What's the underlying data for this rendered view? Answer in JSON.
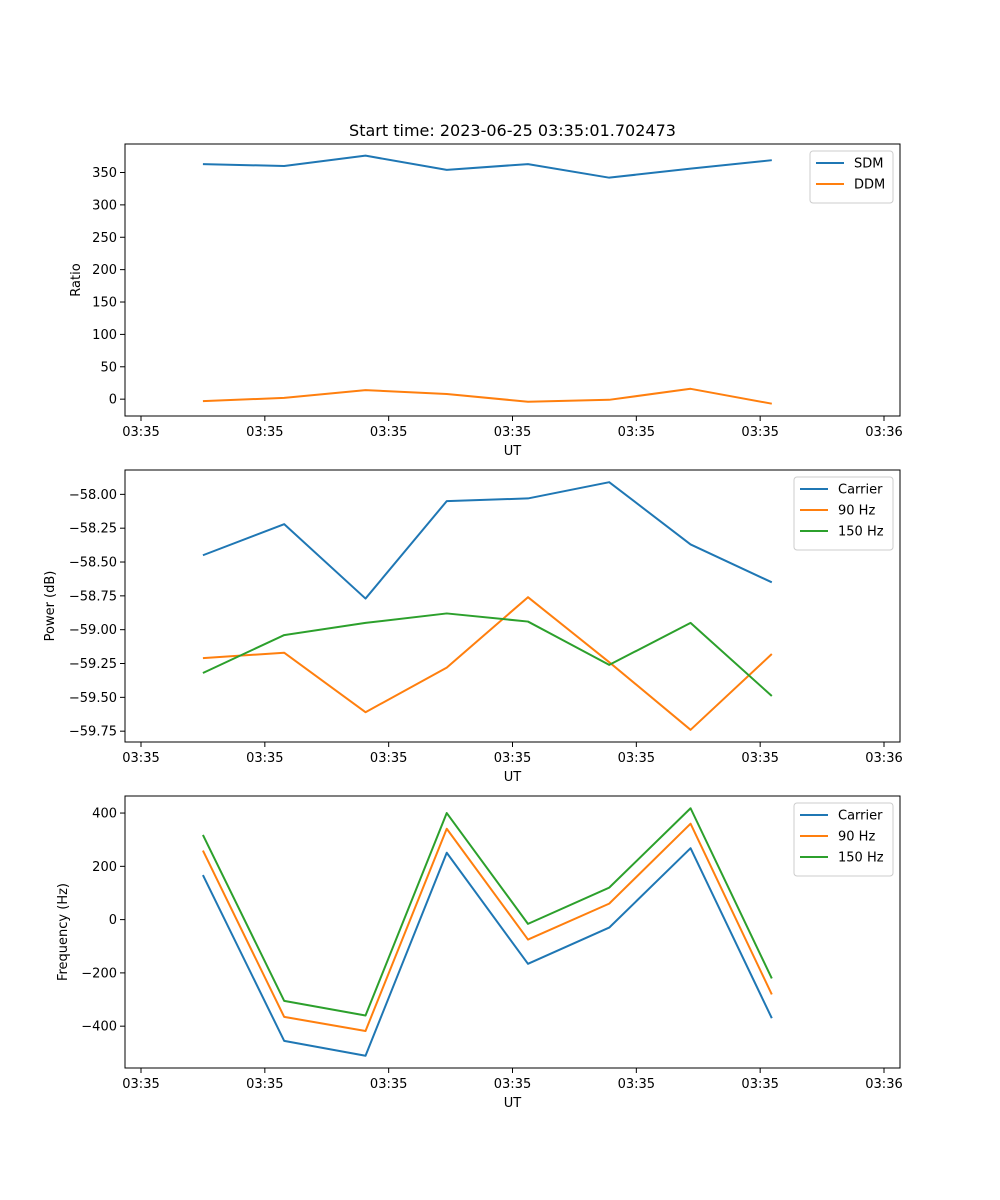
{
  "title": "Start time: 2023-06-25 03:35:01.702473",
  "chart_data": [
    {
      "type": "line",
      "title": "Start time: 2023-06-25 03:35:01.702473",
      "xlabel": "UT",
      "ylabel": "Ratio",
      "x": [
        0.5,
        1.156,
        1.813,
        2.469,
        3.125,
        3.781,
        4.438,
        5.094
      ],
      "xlim": [
        0,
        6
      ],
      "xticks": [
        0,
        1,
        2,
        3,
        4,
        5,
        6
      ],
      "xticklabels": [
        "03:35",
        "03:35",
        "03:35",
        "03:35",
        "03:35",
        "03:35",
        "03:36"
      ],
      "ylim": [
        -26,
        394
      ],
      "yticks": [
        0,
        50,
        100,
        150,
        200,
        250,
        300,
        350
      ],
      "yticklabels": [
        "0",
        "50",
        "100",
        "150",
        "200",
        "250",
        "300",
        "350"
      ],
      "legend": "top-right",
      "grid": false,
      "series": [
        {
          "name": "SDM",
          "color": "#1f77b4",
          "values": [
            363,
            360,
            376,
            354,
            363,
            342,
            356,
            369
          ]
        },
        {
          "name": "DDM",
          "color": "#ff7f0e",
          "values": [
            -3,
            2,
            14,
            8,
            -4,
            -1,
            16,
            -7
          ]
        }
      ]
    },
    {
      "type": "line",
      "xlabel": "UT",
      "ylabel": "Power (dB)",
      "x": [
        0.5,
        1.156,
        1.813,
        2.469,
        3.125,
        3.781,
        4.438,
        5.094
      ],
      "xlim": [
        0,
        6
      ],
      "xticks": [
        0,
        1,
        2,
        3,
        4,
        5,
        6
      ],
      "xticklabels": [
        "03:35",
        "03:35",
        "03:35",
        "03:35",
        "03:35",
        "03:35",
        "03:36"
      ],
      "ylim": [
        -59.83,
        -57.82
      ],
      "yticks": [
        -59.75,
        -59.5,
        -59.25,
        -59.0,
        -58.75,
        -58.5,
        -58.25,
        -58.0
      ],
      "yticklabels": [
        "−59.75",
        "−59.50",
        "−59.25",
        "−59.00",
        "−58.75",
        "−58.50",
        "−58.25",
        "−58.00"
      ],
      "legend": "top-right",
      "grid": false,
      "series": [
        {
          "name": "Carrier",
          "color": "#1f77b4",
          "values": [
            -58.45,
            -58.22,
            -58.77,
            -58.05,
            -58.03,
            -57.91,
            -58.37,
            -58.65
          ]
        },
        {
          "name": "90 Hz",
          "color": "#ff7f0e",
          "values": [
            -59.21,
            -59.17,
            -59.61,
            -59.28,
            -58.76,
            -59.24,
            -59.74,
            -59.18
          ]
        },
        {
          "name": "150 Hz",
          "color": "#2ca02c",
          "values": [
            -59.32,
            -59.04,
            -58.95,
            -58.88,
            -58.94,
            -59.26,
            -58.95,
            -59.49
          ]
        }
      ]
    },
    {
      "type": "line",
      "xlabel": "UT",
      "ylabel": "Frequency (Hz)",
      "x": [
        0.5,
        1.156,
        1.813,
        2.469,
        3.125,
        3.781,
        4.438,
        5.094
      ],
      "xlim": [
        0,
        6
      ],
      "xticks": [
        0,
        1,
        2,
        3,
        4,
        5,
        6
      ],
      "xticklabels": [
        "03:35",
        "03:35",
        "03:35",
        "03:35",
        "03:35",
        "03:35",
        "03:36"
      ],
      "ylim": [
        -557,
        464
      ],
      "yticks": [
        -400,
        -200,
        0,
        200,
        400
      ],
      "yticklabels": [
        "−400",
        "−200",
        "0",
        "200",
        "400"
      ],
      "legend": "top-right",
      "grid": false,
      "series": [
        {
          "name": "Carrier",
          "color": "#1f77b4",
          "values": [
            167,
            -455,
            -511,
            251,
            -166,
            -30,
            268,
            -370
          ]
        },
        {
          "name": "90 Hz",
          "color": "#ff7f0e",
          "values": [
            259,
            -365,
            -418,
            341,
            -75,
            60,
            360,
            -281
          ]
        },
        {
          "name": "150 Hz",
          "color": "#2ca02c",
          "values": [
            318,
            -305,
            -360,
            400,
            -16,
            120,
            418,
            -221
          ]
        }
      ]
    }
  ]
}
